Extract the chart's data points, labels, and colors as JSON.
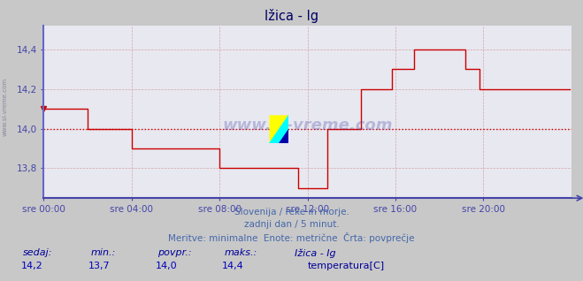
{
  "title": "Ižica - Ig",
  "background_color": "#c8c8c8",
  "plot_bg_color": "#e8e8f0",
  "line_color": "#cc0000",
  "avg_line_color": "#cc0000",
  "avg_value": 14.0,
  "ylim": [
    13.65,
    14.52
  ],
  "yticks": [
    13.8,
    14.0,
    14.2,
    14.4
  ],
  "axis_color": "#4444aa",
  "left_spine_color": "#6666cc",
  "bottom_spine_color": "#4444aa",
  "title_color": "#000066",
  "grid_color": "#cc8888",
  "subtitle_color": "#4466aa",
  "legend_label_color": "#000099",
  "legend_value_color": "#0000bb",
  "temp_color": "#cc0000",
  "x_tick_labels": [
    "sre 00:00",
    "sre 04:00",
    "sre 08:00",
    "sre 12:00",
    "sre 16:00",
    "sre 20:00"
  ],
  "x_tick_positions": [
    0,
    48,
    96,
    144,
    192,
    240
  ],
  "total_points": 288,
  "subtitle1": "Slovenija / reke in morje.",
  "subtitle2": "zadnji dan / 5 minut.",
  "subtitle3": "Meritve: minimalne  Enote: metrične  Črta: povprečje",
  "legend_headers": [
    "sedaj:",
    "min.:",
    "povpr.:",
    "maks.:"
  ],
  "legend_values": [
    "14,2",
    "13,7",
    "14,0",
    "14,4"
  ],
  "station_name": "Ižica - Ig",
  "temp_label": "temperatura[C]",
  "data": [
    14.1,
    14.1,
    14.1,
    14.1,
    14.1,
    14.1,
    14.1,
    14.1,
    14.1,
    14.1,
    14.1,
    14.1,
    14.1,
    14.1,
    14.1,
    14.1,
    14.1,
    14.1,
    14.1,
    14.1,
    14.1,
    14.1,
    14.1,
    14.1,
    14.0,
    14.0,
    14.0,
    14.0,
    14.0,
    14.0,
    14.0,
    14.0,
    14.0,
    14.0,
    14.0,
    14.0,
    14.0,
    14.0,
    14.0,
    14.0,
    14.0,
    14.0,
    14.0,
    14.0,
    14.0,
    14.0,
    14.0,
    14.0,
    13.9,
    13.9,
    13.9,
    13.9,
    13.9,
    13.9,
    13.9,
    13.9,
    13.9,
    13.9,
    13.9,
    13.9,
    13.9,
    13.9,
    13.9,
    13.9,
    13.9,
    13.9,
    13.9,
    13.9,
    13.9,
    13.9,
    13.9,
    13.9,
    13.9,
    13.9,
    13.9,
    13.9,
    13.9,
    13.9,
    13.9,
    13.9,
    13.9,
    13.9,
    13.9,
    13.9,
    13.9,
    13.9,
    13.9,
    13.9,
    13.9,
    13.9,
    13.9,
    13.9,
    13.9,
    13.9,
    13.9,
    13.9,
    13.8,
    13.8,
    13.8,
    13.8,
    13.8,
    13.8,
    13.8,
    13.8,
    13.8,
    13.8,
    13.8,
    13.8,
    13.8,
    13.8,
    13.8,
    13.8,
    13.8,
    13.8,
    13.8,
    13.8,
    13.8,
    13.8,
    13.8,
    13.8,
    13.8,
    13.8,
    13.8,
    13.8,
    13.8,
    13.8,
    13.8,
    13.8,
    13.8,
    13.8,
    13.8,
    13.8,
    13.8,
    13.8,
    13.8,
    13.8,
    13.8,
    13.8,
    13.8,
    13.7,
    13.7,
    13.7,
    13.7,
    13.7,
    13.7,
    13.7,
    13.7,
    13.7,
    13.7,
    13.7,
    13.7,
    13.7,
    13.7,
    13.7,
    13.7,
    14.0,
    14.0,
    14.0,
    14.0,
    14.0,
    14.0,
    14.0,
    14.0,
    14.0,
    14.0,
    14.0,
    14.0,
    14.0,
    14.0,
    14.0,
    14.0,
    14.0,
    14.0,
    14.2,
    14.2,
    14.2,
    14.2,
    14.2,
    14.2,
    14.2,
    14.2,
    14.2,
    14.2,
    14.2,
    14.2,
    14.2,
    14.2,
    14.2,
    14.2,
    14.2,
    14.3,
    14.3,
    14.3,
    14.3,
    14.3,
    14.3,
    14.3,
    14.3,
    14.3,
    14.3,
    14.3,
    14.3,
    14.4,
    14.4,
    14.4,
    14.4,
    14.4,
    14.4,
    14.4,
    14.4,
    14.4,
    14.4,
    14.4,
    14.4,
    14.4,
    14.4,
    14.4,
    14.4,
    14.4,
    14.4,
    14.4,
    14.4,
    14.4,
    14.4,
    14.4,
    14.4,
    14.4,
    14.4,
    14.4,
    14.4,
    14.3,
    14.3,
    14.3,
    14.3,
    14.3,
    14.3,
    14.3,
    14.3,
    14.2,
    14.2,
    14.2,
    14.2,
    14.2,
    14.2,
    14.2,
    14.2,
    14.2,
    14.2,
    14.2,
    14.2,
    14.2,
    14.2,
    14.2,
    14.2,
    14.2,
    14.2,
    14.2,
    14.2,
    14.2,
    14.2,
    14.2,
    14.2,
    14.2,
    14.2,
    14.2,
    14.2,
    14.2,
    14.2,
    14.2,
    14.2,
    14.2,
    14.2,
    14.2,
    14.2,
    14.2,
    14.2,
    14.2,
    14.2,
    14.2,
    14.2,
    14.2,
    14.2,
    14.2,
    14.2,
    14.2,
    14.2,
    14.2,
    14.2
  ]
}
